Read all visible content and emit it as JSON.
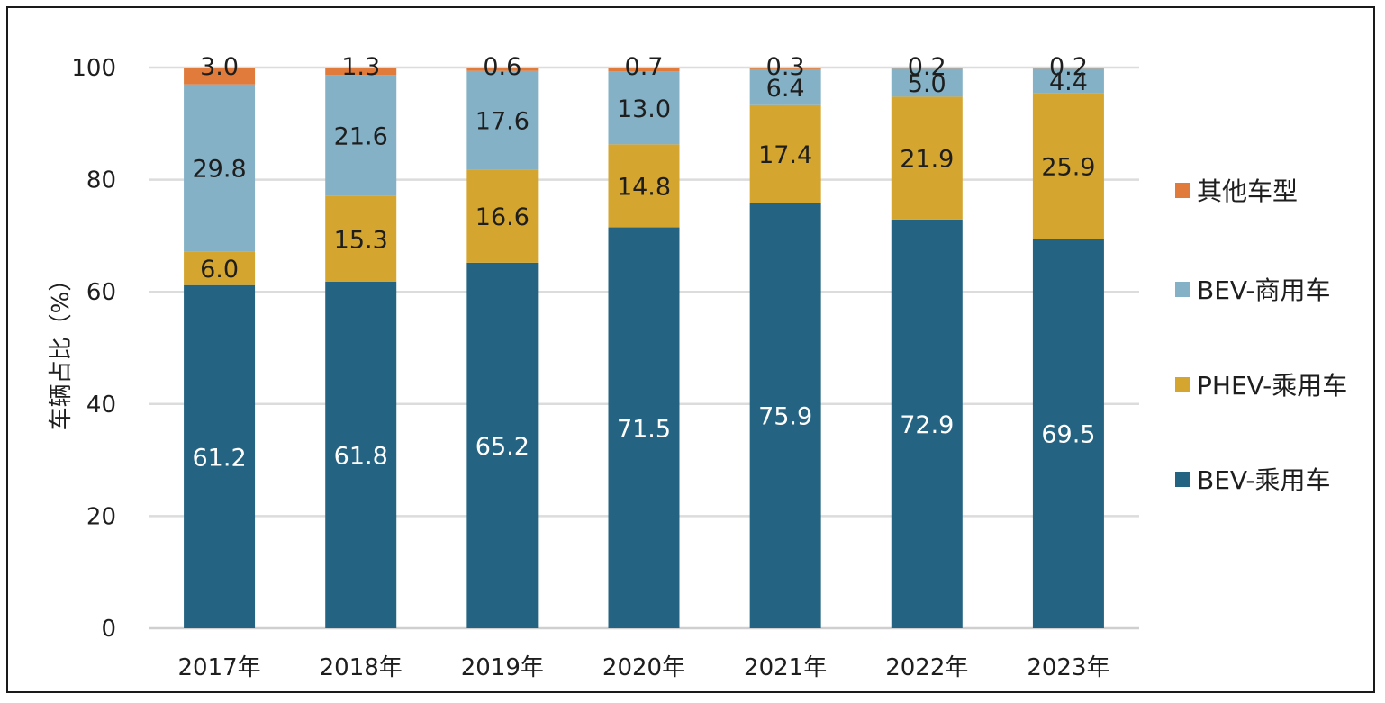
{
  "chart_data": {
    "type": "bar",
    "stacked": true,
    "title": "",
    "xlabel": "",
    "ylabel": "车辆占比（%）",
    "ylim": [
      0,
      100
    ],
    "yticks": [
      "0",
      "20",
      "40",
      "60",
      "80",
      "100"
    ],
    "grid": true,
    "legend_position": "right",
    "categories": [
      "2017年",
      "2018年",
      "2019年",
      "2020年",
      "2021年",
      "2022年",
      "2023年"
    ],
    "series": [
      {
        "name": "BEV-乘用车",
        "color": "#246482",
        "label_color": "#ffffff",
        "values": [
          61.2,
          61.8,
          65.2,
          71.5,
          75.9,
          72.9,
          69.5
        ],
        "labels": [
          "61.2",
          "61.8",
          "65.2",
          "71.5",
          "75.9",
          "72.9",
          "69.5"
        ]
      },
      {
        "name": "PHEV-乘用车",
        "color": "#D4A52F",
        "label_color": "#1e1e1e",
        "values": [
          6.0,
          15.3,
          16.6,
          14.8,
          17.4,
          21.9,
          25.9
        ],
        "labels": [
          "6.0",
          "15.3",
          "16.6",
          "14.8",
          "17.4",
          "21.9",
          "25.9"
        ]
      },
      {
        "name": "BEV-商用车",
        "color": "#84B1C6",
        "label_color": "#1e1e1e",
        "values": [
          29.8,
          21.6,
          17.6,
          13.0,
          6.4,
          5.0,
          4.4
        ],
        "labels": [
          "29.8",
          "21.6",
          "17.6",
          "13.0",
          "6.4",
          "5.0",
          "4.4"
        ]
      },
      {
        "name": "其他车型",
        "color": "#E07B3C",
        "label_color": "#1e1e1e",
        "values": [
          3.0,
          1.3,
          0.6,
          0.7,
          0.3,
          0.2,
          0.2
        ],
        "labels": [
          "3.0",
          "1.3",
          "0.6",
          "0.7",
          "0.3",
          "0.2",
          "0.2"
        ]
      }
    ],
    "legend_order": [
      "其他车型",
      "BEV-商用车",
      "PHEV-乘用车",
      "BEV-乘用车"
    ]
  }
}
